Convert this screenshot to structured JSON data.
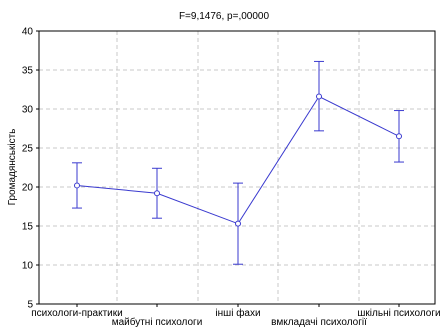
{
  "chart_data": {
    "type": "line",
    "title": "F=9,1476, p=,00000",
    "xlabel": "",
    "ylabel": "Громадянськість",
    "ylim": [
      5,
      40
    ],
    "yticks": [
      5,
      10,
      15,
      20,
      25,
      30,
      35,
      40
    ],
    "grid": true,
    "categories": [
      "психологи-практики",
      "майбутні психологи",
      "інші фахи",
      "вмкладачі психології",
      "шкільні психологи"
    ],
    "series": [
      {
        "mean": [
          20.2,
          19.2,
          15.3,
          31.6,
          26.5
        ],
        "lower": [
          17.3,
          16.0,
          10.1,
          27.2,
          23.2
        ],
        "upper": [
          23.1,
          22.4,
          20.5,
          36.1,
          29.8
        ]
      }
    ],
    "colors": {
      "series": "#3a3acf",
      "grid": "#c8c8c8",
      "axis": "#000000"
    }
  }
}
